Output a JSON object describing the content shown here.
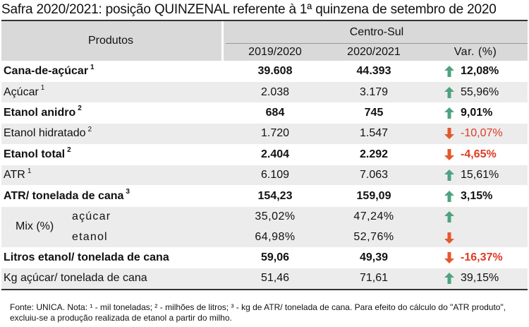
{
  "title": "Safra 2020/2021: posição QUINZENAL referente à 1ª quinzena de setembro de 2020",
  "header": {
    "produtos": "Produtos",
    "region": "Centro-Sul",
    "col1": "2019/2020",
    "col2": "2020/2021",
    "col3": "Var. (%)"
  },
  "rows": [
    {
      "label": "Cana-de-açúcar",
      "sup": "1",
      "v1": "39.608",
      "v2": "44.393",
      "var": "12,08%",
      "trend": "up",
      "bold": true
    },
    {
      "label": "Açúcar",
      "sup": "1",
      "v1": "2.038",
      "v2": "3.179",
      "var": "55,96%",
      "trend": "up",
      "bold": false
    },
    {
      "label": "Etanol anidro",
      "sup": "2",
      "v1": "684",
      "v2": "745",
      "var": "9,01%",
      "trend": "up",
      "bold": true
    },
    {
      "label": "Etanol hidratado",
      "sup": "2",
      "v1": "1.720",
      "v2": "1.547",
      "var": "-10,07%",
      "trend": "down",
      "bold": false
    },
    {
      "label": "Etanol total",
      "sup": "2",
      "v1": "2.404",
      "v2": "2.292",
      "var": "-4,65%",
      "trend": "down",
      "bold": true
    },
    {
      "label": "ATR",
      "sup": "1",
      "v1": "6.109",
      "v2": "7.063",
      "var": "15,61%",
      "trend": "up",
      "bold": false
    },
    {
      "label": "ATR/ tonelada de cana",
      "sup": "3",
      "v1": "154,23",
      "v2": "159,09",
      "var": "3,15%",
      "trend": "up",
      "bold": true
    }
  ],
  "mix": {
    "label": "Mix (%)",
    "sub1": "açúcar",
    "sub2": "etanol",
    "a1": "35,02%",
    "a2": "47,24%",
    "b1": "64,98%",
    "b2": "52,76%",
    "trend1": "up",
    "trend2": "down"
  },
  "rows2": [
    {
      "label": "Litros etanol/ tonelada de cana",
      "v1": "59,06",
      "v2": "49,39",
      "var": "-16,37%",
      "trend": "down",
      "bold": true
    },
    {
      "label": "Kg açúcar/ tonelada de cana",
      "v1": "51,46",
      "v2": "71,61",
      "var": "39,15%",
      "trend": "up",
      "bold": false
    }
  ],
  "footnote": "Fonte: UNICA. Nota: ¹ - mil toneladas; ² - milhões de litros; ³ - kg de ATR/ tonelada de cana. Para efeito do cálculo do \"ATR produto\", excluiu-se a produção realizada de etanol a partir do milho.",
  "colors": {
    "up": "#4fa27f",
    "down": "#e4582e",
    "negative_text": "#e03a25",
    "header_bg": "#d9d9d9",
    "row_bg": "#ececec"
  }
}
